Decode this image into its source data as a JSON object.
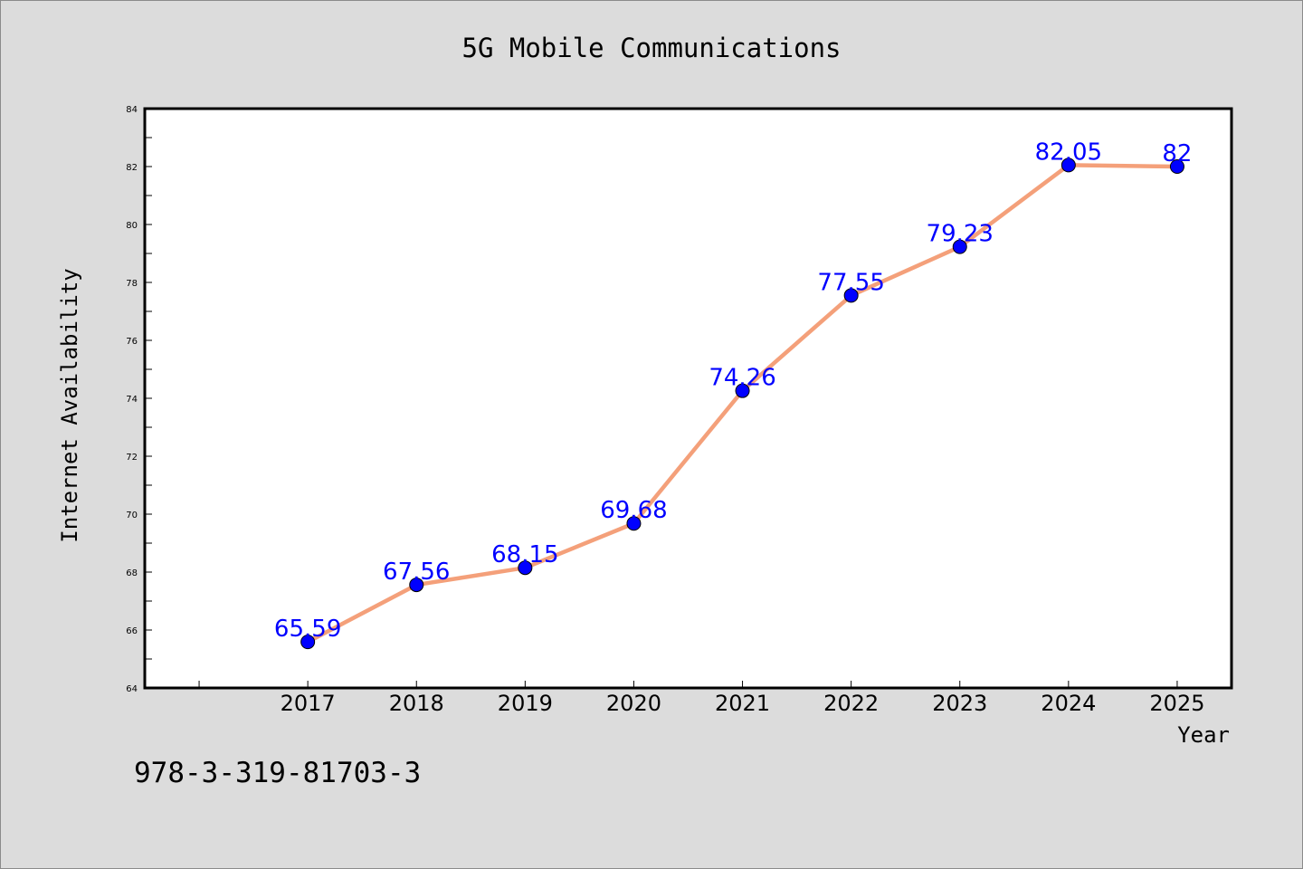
{
  "colors": {
    "background": "#dcdcdc",
    "plot_background": "#ffffff",
    "line": "#f4a07a",
    "marker": "#0000ff",
    "data_label": "#0000ff"
  },
  "footnote": "978-3-319-81703-3",
  "chart_data": {
    "type": "line",
    "title": "5G Mobile Communications",
    "xlabel": "Year",
    "ylabel": "Internet Availability",
    "categories": [
      "2017",
      "2018",
      "2019",
      "2020",
      "2021",
      "2022",
      "2023",
      "2024",
      "2025"
    ],
    "values": [
      65.59,
      67.56,
      68.15,
      69.68,
      74.26,
      77.55,
      79.23,
      82.05,
      82
    ],
    "data_labels": [
      "65.59",
      "67.56",
      "68.15",
      "69.68",
      "74.26",
      "77.55",
      "79.23",
      "82.05",
      "82"
    ],
    "ylim": [
      64,
      84
    ],
    "yticks": [
      64,
      66,
      68,
      70,
      72,
      74,
      76,
      78,
      80,
      82,
      84
    ],
    "ytick_labels": [
      "64",
      "66",
      "68",
      "70",
      "72",
      "74",
      "76",
      "78",
      "80",
      "82",
      "84"
    ],
    "xlim": [
      2015.5,
      2025.5
    ],
    "grid": false,
    "legend": "none"
  }
}
